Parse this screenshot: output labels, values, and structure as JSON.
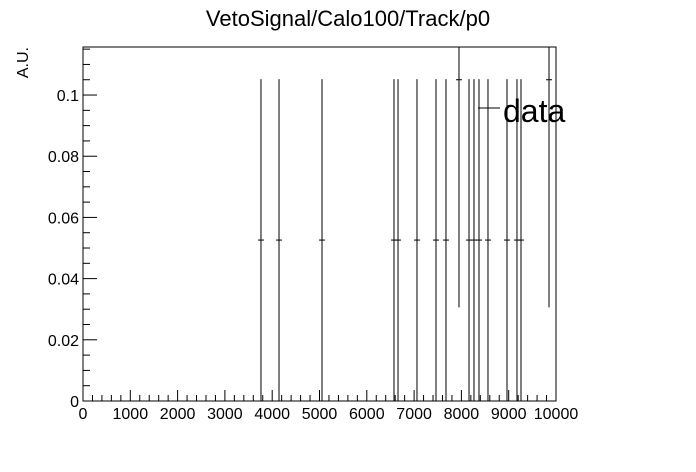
{
  "chart_data": {
    "type": "errorbar",
    "title": "VetoSignal/Calo100/Track/p0",
    "y_label": "A.U.",
    "xlim": [
      0,
      10000
    ],
    "xticks": [
      0,
      1000,
      2000,
      3000,
      4000,
      5000,
      6000,
      7000,
      8000,
      9000,
      10000
    ],
    "ylim": [
      0,
      0.1157
    ],
    "yticks": [
      0,
      0.02,
      0.04,
      0.06,
      0.08,
      0.1
    ],
    "color": "#000000",
    "series": [
      {
        "name": "data",
        "color": "#000000",
        "x": [
          3763,
          4144,
          5053,
          6575,
          6660,
          7061,
          7463,
          7674,
          7949,
          8161,
          8266,
          8372,
          8562,
          8964,
          9175,
          9260,
          9852
        ],
        "values": [
          0.0526,
          0.0526,
          0.0526,
          0.0526,
          0.0526,
          0.0526,
          0.0526,
          0.0526,
          0.105,
          0.0526,
          0.0526,
          0.0526,
          0.0526,
          0.0526,
          0.0526,
          0.0526,
          0.105
        ],
        "errors": [
          0.0526,
          0.0526,
          0.0526,
          0.0526,
          0.0526,
          0.0526,
          0.0526,
          0.0526,
          0.0744,
          0.0526,
          0.0526,
          0.0526,
          0.0526,
          0.0526,
          0.0526,
          0.0526,
          0.0744
        ]
      }
    ]
  }
}
